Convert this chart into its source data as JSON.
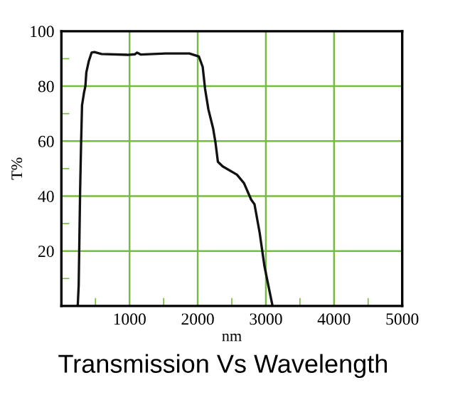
{
  "chart_data": {
    "type": "line",
    "title": "Transmission Vs Wavelength",
    "xlabel": "nm",
    "ylabel": "T%",
    "xlim": [
      0,
      5000
    ],
    "ylim": [
      0,
      100
    ],
    "xticks": [
      {
        "value": 0,
        "label": null
      },
      {
        "value": 500,
        "label": null
      },
      1000,
      {
        "value": 1500,
        "label": null
      },
      2000,
      {
        "value": 2500,
        "label": null
      },
      3000,
      {
        "value": 3500,
        "label": null
      },
      4000,
      {
        "value": 4500,
        "label": null
      },
      5000
    ],
    "yticks": [
      {
        "value": 0,
        "label": null
      },
      {
        "value": 10,
        "label": null
      },
      20,
      {
        "value": 30,
        "label": null
      },
      40,
      {
        "value": 50,
        "label": null
      },
      60,
      {
        "value": 70,
        "label": null
      },
      80,
      {
        "value": 90,
        "label": null
      },
      100
    ],
    "grid": true,
    "marker": "none",
    "line_style": "solid",
    "series": [
      {
        "color": "#111111",
        "x": [
          240,
          254,
          275,
          289,
          303,
          331,
          352,
          366,
          401,
          443,
          484,
          589,
          972,
          1077,
          1111,
          1167,
          1530,
          1878,
          2017,
          2073,
          2108,
          2157,
          2226,
          2261,
          2296,
          2366,
          2575,
          2679,
          2784,
          2833,
          2909,
          2979,
          3049,
          3098
        ],
        "values": [
          0,
          7.6,
          42,
          59,
          73,
          77.5,
          80,
          85,
          89,
          92.2,
          92.4,
          91.7,
          91.4,
          91.6,
          92.2,
          91.5,
          91.9,
          91.9,
          90.8,
          87,
          79,
          71.5,
          64.6,
          59.4,
          52.5,
          50.8,
          47.8,
          44.7,
          38.7,
          37,
          26.6,
          14.5,
          5.9,
          0
        ]
      }
    ]
  }
}
